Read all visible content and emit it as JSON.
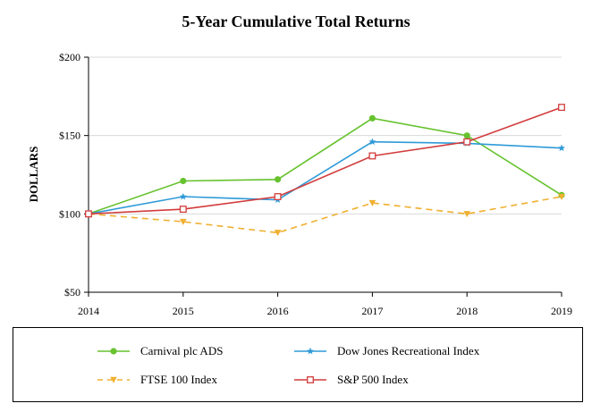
{
  "chart_data": {
    "type": "line",
    "title": "5-Year Cumulative Total Returns",
    "xlabel": "",
    "ylabel": "DOLLARS",
    "categories": [
      "2014",
      "2015",
      "2016",
      "2017",
      "2018",
      "2019"
    ],
    "ylim": [
      50,
      200
    ],
    "yticks": [
      50,
      100,
      150,
      200
    ],
    "ytick_labels": [
      "$50",
      "$100",
      "$150",
      "$200"
    ],
    "grid": "horizontal",
    "legend_position": "bottom",
    "series": [
      {
        "name": "Carnival plc ADS",
        "values": [
          100,
          121,
          122,
          161,
          150,
          112
        ],
        "color": "#66c22e",
        "dash": "solid",
        "marker": "circle"
      },
      {
        "name": "Dow Jones Recreational Index",
        "values": [
          100,
          111,
          109,
          146,
          145,
          142
        ],
        "color": "#2e9ad8",
        "dash": "solid",
        "marker": "star"
      },
      {
        "name": "FTSE 100 Index",
        "values": [
          100,
          95,
          88,
          107,
          100,
          111
        ],
        "color": "#f0b030",
        "dash": "dashed",
        "marker": "triangle-down"
      },
      {
        "name": "S&P 500 Index",
        "values": [
          100,
          103,
          111,
          137,
          146,
          168
        ],
        "color": "#d23c3c",
        "dash": "solid",
        "marker": "square-open"
      }
    ]
  }
}
